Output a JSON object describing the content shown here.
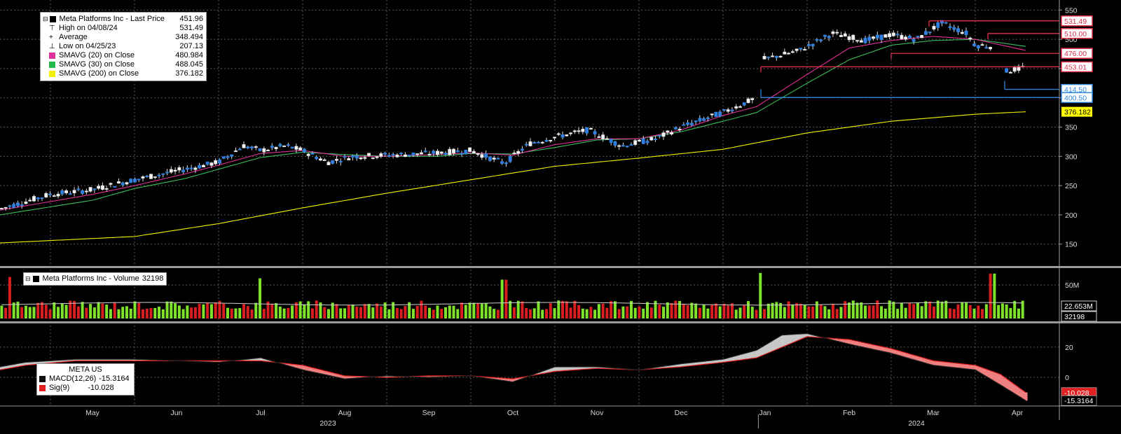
{
  "chart_data": {
    "type": "candlestick",
    "ticker": "META US",
    "price_panel": {
      "legend": [
        {
          "label": "Meta Platforms Inc - Last Price",
          "value": "451.96",
          "icon": "black-square"
        },
        {
          "label": "High on 04/08/24",
          "value": "531.49",
          "icon": "high-marker"
        },
        {
          "label": "Average",
          "value": "348.494",
          "icon": "average-marker"
        },
        {
          "label": "Low on 04/25/23",
          "value": "207.13",
          "icon": "low-marker"
        },
        {
          "label": "SMAVG (20)  on Close",
          "value": "480.984",
          "icon": "swatch",
          "color": "#e0309a"
        },
        {
          "label": "SMAVG (30)  on Close",
          "value": "488.045",
          "icon": "swatch",
          "color": "#22b84a"
        },
        {
          "label": "SMAVG (200)  on Close",
          "value": "376.182",
          "icon": "swatch",
          "color": "#f2f200"
        }
      ],
      "ylim": [
        115,
        560
      ],
      "y_ticks": [
        "150",
        "200",
        "250",
        "300",
        "350",
        "400",
        "450",
        "500",
        "550"
      ],
      "months": [
        {
          "label": "May",
          "start": 0.0
        },
        {
          "label": "Jun",
          "start": 1.0
        },
        {
          "label": "Jul",
          "start": 2.0
        },
        {
          "label": "Aug",
          "start": 3.0
        },
        {
          "label": "Sep",
          "start": 4.0
        },
        {
          "label": "Oct",
          "start": 5.0
        },
        {
          "label": "Nov",
          "start": 6.0
        },
        {
          "label": "Dec",
          "start": 7.0
        },
        {
          "label": "Jan",
          "start": 8.0
        },
        {
          "label": "Feb",
          "start": 9.0
        },
        {
          "label": "Mar",
          "start": 10.0
        },
        {
          "label": "Apr",
          "start": 11.0
        }
      ],
      "x_range": [
        -0.6,
        12.0
      ],
      "price_path": [
        [
          -0.6,
          210
        ],
        [
          0.0,
          235
        ],
        [
          0.5,
          243
        ],
        [
          1.0,
          260
        ],
        [
          1.5,
          275
        ],
        [
          2.0,
          290
        ],
        [
          2.3,
          318
        ],
        [
          2.5,
          310
        ],
        [
          2.8,
          318
        ],
        [
          3.0,
          310
        ],
        [
          3.3,
          290
        ],
        [
          3.6,
          300
        ],
        [
          4.0,
          302
        ],
        [
          4.5,
          305
        ],
        [
          5.0,
          310
        ],
        [
          5.4,
          288
        ],
        [
          5.7,
          322
        ],
        [
          6.0,
          333
        ],
        [
          6.4,
          345
        ],
        [
          6.8,
          318
        ],
        [
          7.2,
          330
        ],
        [
          7.5,
          350
        ],
        [
          8.0,
          375
        ],
        [
          8.4,
          400
        ],
        [
          8.45,
          465
        ],
        [
          8.9,
          480
        ],
        [
          9.3,
          510
        ],
        [
          9.7,
          498
        ],
        [
          10.0,
          508
        ],
        [
          10.3,
          500
        ],
        [
          10.6,
          528
        ],
        [
          10.9,
          510
        ],
        [
          11.0,
          490
        ],
        [
          11.2,
          488
        ],
        [
          11.35,
          445
        ],
        [
          11.6,
          452
        ]
      ],
      "sma20_path": [
        [
          -0.6,
          208
        ],
        [
          0.5,
          235
        ],
        [
          1.0,
          250
        ],
        [
          1.6,
          270
        ],
        [
          2.0,
          285
        ],
        [
          2.5,
          305
        ],
        [
          3.0,
          310
        ],
        [
          3.5,
          300
        ],
        [
          4.0,
          300
        ],
        [
          4.6,
          303
        ],
        [
          5.0,
          306
        ],
        [
          5.5,
          302
        ],
        [
          6.0,
          320
        ],
        [
          6.5,
          330
        ],
        [
          7.0,
          330
        ],
        [
          7.5,
          345
        ],
        [
          8.0,
          370
        ],
        [
          8.4,
          385
        ],
        [
          9.0,
          440
        ],
        [
          9.5,
          485
        ],
        [
          10.0,
          498
        ],
        [
          10.5,
          505
        ],
        [
          11.0,
          500
        ],
        [
          11.6,
          481
        ]
      ],
      "sma30_path": [
        [
          -0.6,
          200
        ],
        [
          0.5,
          225
        ],
        [
          1.0,
          245
        ],
        [
          1.6,
          262
        ],
        [
          2.0,
          278
        ],
        [
          2.5,
          298
        ],
        [
          3.0,
          307
        ],
        [
          3.5,
          303
        ],
        [
          4.0,
          300
        ],
        [
          4.6,
          300
        ],
        [
          5.0,
          305
        ],
        [
          5.5,
          304
        ],
        [
          6.0,
          315
        ],
        [
          6.5,
          328
        ],
        [
          7.0,
          330
        ],
        [
          7.5,
          342
        ],
        [
          8.0,
          360
        ],
        [
          8.4,
          375
        ],
        [
          9.0,
          425
        ],
        [
          9.5,
          465
        ],
        [
          10.0,
          490
        ],
        [
          10.5,
          498
        ],
        [
          11.0,
          500
        ],
        [
          11.6,
          488
        ]
      ],
      "sma200_path": [
        [
          -0.6,
          152
        ],
        [
          1.0,
          163
        ],
        [
          2.0,
          185
        ],
        [
          3.0,
          212
        ],
        [
          4.0,
          237
        ],
        [
          5.0,
          260
        ],
        [
          6.0,
          283
        ],
        [
          7.0,
          297
        ],
        [
          8.0,
          312
        ],
        [
          9.0,
          340
        ],
        [
          10.0,
          360
        ],
        [
          11.0,
          372
        ],
        [
          11.6,
          376.182
        ]
      ],
      "reference_lines": [
        {
          "label": "531.49",
          "value": 531.49,
          "from": 10.45,
          "color": "#e0304a"
        },
        {
          "label": "510.00",
          "value": 510.0,
          "from": 11.15,
          "color": "#e0304a"
        },
        {
          "label": "476.00",
          "value": 476.0,
          "from": 10.0,
          "color": "#e0304a"
        },
        {
          "label": "453.01",
          "value": 453.01,
          "from": 8.45,
          "color": "#e0304a"
        },
        {
          "label": "414.50",
          "value": 414.5,
          "from": 11.35,
          "color": "#2e86de"
        },
        {
          "label": "400.50",
          "value": 400.5,
          "from": 8.45,
          "color": "#2e86de"
        }
      ],
      "price_tags": [
        {
          "label": "376.182",
          "value": 376.182,
          "bg": "#ffff00",
          "fg": "#000000"
        }
      ]
    },
    "volume_panel": {
      "legend": {
        "label": "Meta Platforms Inc - Volume",
        "value": "32198"
      },
      "ylim": [
        0,
        70
      ],
      "y_ticks": [
        "50M"
      ],
      "avg_tag": "22.653M",
      "last_tag": "32198",
      "spikes": [
        {
          "x": -0.5,
          "value": 62
        },
        {
          "x": 2.5,
          "value": 60
        },
        {
          "x": 5.4,
          "value": 58
        },
        {
          "x": 8.45,
          "value": 68
        },
        {
          "x": 11.2,
          "value": 67
        }
      ]
    },
    "macd_panel": {
      "legend": [
        {
          "label": "MACD(12,26)",
          "value": "-15.3164",
          "color": "#111111"
        },
        {
          "label": "Sig(9)",
          "value": "-10.028",
          "color": "#e02020"
        }
      ],
      "title": "META US",
      "ylim": [
        -18,
        32
      ],
      "y_ticks": [
        "20",
        "0"
      ],
      "tags": [
        {
          "label": "-10.028",
          "value": -10.028,
          "bg": "#e02020",
          "fg": "#ffffff"
        },
        {
          "label": "-15.3164",
          "value": -15.3164,
          "bg": "#000000",
          "fg": "#ffffff"
        }
      ],
      "macd_path": [
        [
          -0.6,
          7
        ],
        [
          -0.3,
          10
        ],
        [
          0.3,
          12
        ],
        [
          1.0,
          12
        ],
        [
          2.0,
          10
        ],
        [
          2.5,
          13
        ],
        [
          3.0,
          5
        ],
        [
          3.5,
          -1
        ],
        [
          4.0,
          1
        ],
        [
          4.5,
          0
        ],
        [
          5.0,
          1
        ],
        [
          5.5,
          -3
        ],
        [
          6.0,
          7
        ],
        [
          6.5,
          7
        ],
        [
          7.0,
          5
        ],
        [
          7.5,
          9
        ],
        [
          8.0,
          12
        ],
        [
          8.4,
          18
        ],
        [
          8.7,
          28
        ],
        [
          9.0,
          29
        ],
        [
          9.5,
          22
        ],
        [
          10.0,
          16
        ],
        [
          10.5,
          8
        ],
        [
          11.0,
          5
        ],
        [
          11.3,
          -5
        ],
        [
          11.6,
          -15.3164
        ]
      ],
      "signal_path": [
        [
          -0.6,
          5
        ],
        [
          -0.3,
          8
        ],
        [
          0.3,
          11
        ],
        [
          1.0,
          11
        ],
        [
          2.0,
          11
        ],
        [
          2.5,
          11
        ],
        [
          3.0,
          8
        ],
        [
          3.5,
          1
        ],
        [
          4.0,
          0
        ],
        [
          4.5,
          1
        ],
        [
          5.0,
          1
        ],
        [
          5.5,
          -1
        ],
        [
          6.0,
          4
        ],
        [
          6.5,
          6
        ],
        [
          7.0,
          5
        ],
        [
          7.5,
          7
        ],
        [
          8.0,
          10
        ],
        [
          8.4,
          13
        ],
        [
          8.7,
          20
        ],
        [
          9.0,
          27
        ],
        [
          9.5,
          25
        ],
        [
          10.0,
          19
        ],
        [
          10.5,
          11
        ],
        [
          11.0,
          8
        ],
        [
          11.3,
          2
        ],
        [
          11.6,
          -10.028
        ]
      ]
    },
    "x_axis": {
      "year_labels": [
        {
          "label": "2023",
          "x": 3.3
        },
        {
          "label": "2024",
          "x": 10.3
        }
      ],
      "year_break": 8.42
    }
  }
}
